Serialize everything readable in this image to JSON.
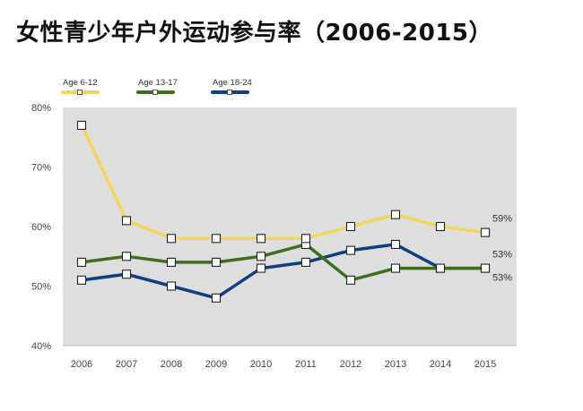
{
  "title": "女性青少年户外运动参与率（2006-2015）",
  "chart_data": {
    "type": "line",
    "x": [
      "2006",
      "2007",
      "2008",
      "2009",
      "2010",
      "2011",
      "2012",
      "2013",
      "2014",
      "2015"
    ],
    "ylim": [
      40,
      80
    ],
    "yticks": [
      40,
      50,
      60,
      70,
      80
    ],
    "ytick_labels": [
      "40%",
      "50%",
      "60%",
      "70%",
      "80%"
    ],
    "grid": false,
    "legend_position": "top-left",
    "series": [
      {
        "name": "Age 6-12",
        "color": "#f2d65a",
        "values": [
          77,
          61,
          58,
          58,
          58,
          58,
          60,
          62,
          60,
          59
        ],
        "end_label": "59%"
      },
      {
        "name": "Age 13-17",
        "color": "#3f6f1c",
        "values": [
          54,
          55,
          54,
          54,
          55,
          57,
          51,
          53,
          53,
          53
        ],
        "end_label": "53%"
      },
      {
        "name": "Age 18-24",
        "color": "#0d4182",
        "values": [
          51,
          52,
          50,
          48,
          53,
          54,
          56,
          57,
          53,
          53
        ],
        "end_label": "53%"
      }
    ]
  }
}
